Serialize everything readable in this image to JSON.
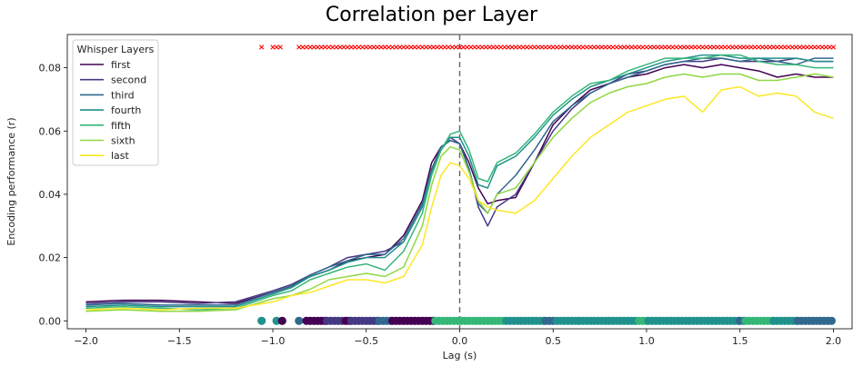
{
  "chart_data": {
    "type": "line",
    "title": "Correlation per Layer",
    "xlabel": "Lag (s)",
    "ylabel": "Encoding performance (r)",
    "xlim": [
      -2.1,
      2.1
    ],
    "ylim": [
      -0.0025,
      0.0905
    ],
    "x_ticks": [
      -2.0,
      -1.5,
      -1.0,
      -0.5,
      0.0,
      0.5,
      1.0,
      1.5,
      2.0
    ],
    "x_tick_labels": [
      "−2.0",
      "−1.5",
      "−1.0",
      "−0.5",
      "0.0",
      "0.5",
      "1.0",
      "1.5",
      "2.0"
    ],
    "y_ticks": [
      0.0,
      0.02,
      0.04,
      0.06,
      0.08
    ],
    "y_tick_labels": [
      "0.00",
      "0.02",
      "0.04",
      "0.06",
      "0.08"
    ],
    "grid": false,
    "vline_x": 0.0,
    "legend": {
      "title": "Whisper Layers",
      "placement": "top-left"
    },
    "series": [
      {
        "name": "first",
        "color": "#440154",
        "x": [
          -2.0,
          -1.8,
          -1.6,
          -1.4,
          -1.2,
          -1.0,
          -0.9,
          -0.8,
          -0.7,
          -0.6,
          -0.5,
          -0.4,
          -0.3,
          -0.2,
          -0.15,
          -0.1,
          -0.05,
          0.0,
          0.05,
          0.1,
          0.15,
          0.2,
          0.3,
          0.4,
          0.5,
          0.6,
          0.7,
          0.8,
          0.9,
          1.0,
          1.1,
          1.2,
          1.3,
          1.4,
          1.5,
          1.6,
          1.7,
          1.8,
          1.9,
          2.0
        ],
        "y": [
          0.006,
          0.0065,
          0.0065,
          0.006,
          0.0055,
          0.009,
          0.011,
          0.014,
          0.016,
          0.019,
          0.02,
          0.021,
          0.027,
          0.038,
          0.05,
          0.055,
          0.057,
          0.056,
          0.05,
          0.042,
          0.037,
          0.038,
          0.039,
          0.05,
          0.062,
          0.068,
          0.073,
          0.075,
          0.077,
          0.078,
          0.08,
          0.081,
          0.08,
          0.081,
          0.08,
          0.079,
          0.077,
          0.078,
          0.077,
          0.077
        ]
      },
      {
        "name": "second",
        "color": "#443983",
        "x": [
          -2.0,
          -1.8,
          -1.6,
          -1.4,
          -1.2,
          -1.0,
          -0.9,
          -0.8,
          -0.7,
          -0.6,
          -0.5,
          -0.4,
          -0.3,
          -0.2,
          -0.15,
          -0.1,
          -0.05,
          0.0,
          0.05,
          0.1,
          0.15,
          0.2,
          0.3,
          0.4,
          0.5,
          0.6,
          0.7,
          0.8,
          0.9,
          1.0,
          1.1,
          1.2,
          1.3,
          1.4,
          1.5,
          1.6,
          1.7,
          1.8,
          1.9,
          2.0
        ],
        "y": [
          0.0055,
          0.006,
          0.006,
          0.0055,
          0.006,
          0.0095,
          0.0115,
          0.0145,
          0.017,
          0.02,
          0.021,
          0.022,
          0.025,
          0.036,
          0.048,
          0.054,
          0.058,
          0.056,
          0.048,
          0.036,
          0.03,
          0.036,
          0.04,
          0.05,
          0.06,
          0.067,
          0.072,
          0.075,
          0.078,
          0.079,
          0.081,
          0.082,
          0.082,
          0.083,
          0.082,
          0.082,
          0.082,
          0.083,
          0.082,
          0.082
        ]
      },
      {
        "name": "third",
        "color": "#31688e",
        "x": [
          -2.0,
          -1.8,
          -1.6,
          -1.4,
          -1.2,
          -1.0,
          -0.9,
          -0.8,
          -0.7,
          -0.6,
          -0.5,
          -0.4,
          -0.3,
          -0.2,
          -0.15,
          -0.1,
          -0.05,
          0.0,
          0.05,
          0.1,
          0.15,
          0.2,
          0.3,
          0.4,
          0.5,
          0.6,
          0.7,
          0.8,
          0.9,
          1.0,
          1.1,
          1.2,
          1.3,
          1.4,
          1.5,
          1.6,
          1.7,
          1.8,
          1.9,
          2.0
        ],
        "y": [
          0.005,
          0.0055,
          0.005,
          0.005,
          0.005,
          0.009,
          0.011,
          0.0145,
          0.017,
          0.019,
          0.021,
          0.021,
          0.026,
          0.037,
          0.048,
          0.055,
          0.057,
          0.056,
          0.048,
          0.037,
          0.034,
          0.04,
          0.046,
          0.054,
          0.063,
          0.068,
          0.072,
          0.075,
          0.077,
          0.079,
          0.081,
          0.082,
          0.083,
          0.083,
          0.082,
          0.083,
          0.082,
          0.081,
          0.083,
          0.083
        ]
      },
      {
        "name": "fourth",
        "color": "#21918c",
        "x": [
          -2.0,
          -1.8,
          -1.6,
          -1.4,
          -1.2,
          -1.0,
          -0.9,
          -0.8,
          -0.7,
          -0.6,
          -0.5,
          -0.4,
          -0.3,
          -0.2,
          -0.15,
          -0.1,
          -0.05,
          0.0,
          0.05,
          0.1,
          0.15,
          0.2,
          0.3,
          0.4,
          0.5,
          0.6,
          0.7,
          0.8,
          0.9,
          1.0,
          1.1,
          1.2,
          1.3,
          1.4,
          1.5,
          1.6,
          1.7,
          1.8,
          1.9,
          2.0
        ],
        "y": [
          0.0045,
          0.005,
          0.0045,
          0.0045,
          0.0045,
          0.0085,
          0.0105,
          0.014,
          0.016,
          0.0185,
          0.02,
          0.02,
          0.025,
          0.036,
          0.047,
          0.054,
          0.058,
          0.058,
          0.052,
          0.043,
          0.042,
          0.049,
          0.052,
          0.058,
          0.065,
          0.07,
          0.074,
          0.076,
          0.078,
          0.08,
          0.082,
          0.083,
          0.084,
          0.084,
          0.083,
          0.083,
          0.083,
          0.083,
          0.082,
          0.082
        ]
      },
      {
        "name": "fifth",
        "color": "#35b779",
        "x": [
          -2.0,
          -1.8,
          -1.6,
          -1.4,
          -1.2,
          -1.0,
          -0.9,
          -0.8,
          -0.7,
          -0.6,
          -0.5,
          -0.4,
          -0.3,
          -0.2,
          -0.15,
          -0.1,
          -0.05,
          0.0,
          0.05,
          0.1,
          0.15,
          0.2,
          0.3,
          0.4,
          0.5,
          0.6,
          0.7,
          0.8,
          0.9,
          1.0,
          1.1,
          1.2,
          1.3,
          1.4,
          1.5,
          1.6,
          1.7,
          1.8,
          1.9,
          2.0
        ],
        "y": [
          0.004,
          0.0045,
          0.004,
          0.0035,
          0.004,
          0.008,
          0.0095,
          0.013,
          0.015,
          0.017,
          0.018,
          0.016,
          0.022,
          0.034,
          0.046,
          0.054,
          0.059,
          0.06,
          0.054,
          0.045,
          0.044,
          0.05,
          0.053,
          0.059,
          0.066,
          0.071,
          0.075,
          0.076,
          0.079,
          0.081,
          0.083,
          0.083,
          0.083,
          0.084,
          0.084,
          0.082,
          0.081,
          0.081,
          0.08,
          0.08
        ]
      },
      {
        "name": "sixth",
        "color": "#8fd744",
        "x": [
          -2.0,
          -1.8,
          -1.6,
          -1.4,
          -1.2,
          -1.0,
          -0.9,
          -0.8,
          -0.7,
          -0.6,
          -0.5,
          -0.4,
          -0.3,
          -0.2,
          -0.15,
          -0.1,
          -0.05,
          0.0,
          0.05,
          0.1,
          0.15,
          0.2,
          0.3,
          0.4,
          0.5,
          0.6,
          0.7,
          0.8,
          0.9,
          1.0,
          1.1,
          1.2,
          1.3,
          1.4,
          1.5,
          1.6,
          1.7,
          1.8,
          1.9,
          2.0
        ],
        "y": [
          0.003,
          0.0035,
          0.003,
          0.003,
          0.0035,
          0.007,
          0.008,
          0.01,
          0.013,
          0.014,
          0.015,
          0.014,
          0.017,
          0.03,
          0.043,
          0.052,
          0.055,
          0.054,
          0.047,
          0.038,
          0.034,
          0.04,
          0.042,
          0.05,
          0.058,
          0.064,
          0.069,
          0.072,
          0.074,
          0.075,
          0.077,
          0.078,
          0.077,
          0.078,
          0.078,
          0.076,
          0.076,
          0.077,
          0.078,
          0.077
        ]
      },
      {
        "name": "last",
        "color": "#fde725",
        "x": [
          -2.0,
          -1.8,
          -1.6,
          -1.4,
          -1.2,
          -1.0,
          -0.9,
          -0.8,
          -0.7,
          -0.6,
          -0.5,
          -0.4,
          -0.3,
          -0.2,
          -0.15,
          -0.1,
          -0.05,
          0.0,
          0.05,
          0.1,
          0.15,
          0.2,
          0.3,
          0.4,
          0.5,
          0.6,
          0.7,
          0.8,
          0.9,
          1.0,
          1.1,
          1.2,
          1.3,
          1.4,
          1.5,
          1.6,
          1.7,
          1.8,
          1.9,
          2.0
        ],
        "y": [
          0.0035,
          0.004,
          0.0035,
          0.004,
          0.004,
          0.006,
          0.008,
          0.009,
          0.011,
          0.013,
          0.013,
          0.012,
          0.014,
          0.024,
          0.036,
          0.046,
          0.05,
          0.049,
          0.045,
          0.038,
          0.036,
          0.035,
          0.034,
          0.038,
          0.045,
          0.052,
          0.058,
          0.062,
          0.066,
          0.068,
          0.07,
          0.071,
          0.066,
          0.073,
          0.074,
          0.071,
          0.072,
          0.071,
          0.066,
          0.064
        ]
      }
    ],
    "markers_x_row": {
      "y": 0.0865,
      "color": "#ff0000",
      "segments": [
        [
          -1.06,
          -1.06
        ],
        [
          -1.0,
          -0.96
        ],
        [
          -0.86,
          2.0
        ]
      ]
    },
    "markers_dot_row": {
      "y": 0.0,
      "segments": [
        {
          "from": -1.06,
          "to": -1.06,
          "layer": "fourth"
        },
        {
          "from": -0.98,
          "to": -0.98,
          "layer": "fourth"
        },
        {
          "from": -0.95,
          "to": -0.95,
          "layer": "first"
        },
        {
          "from": -0.86,
          "to": -0.86,
          "layer": "third"
        },
        {
          "from": -0.82,
          "to": -0.72,
          "layer": "first"
        },
        {
          "from": -0.71,
          "to": -0.62,
          "layer": "second"
        },
        {
          "from": -0.61,
          "to": -0.59,
          "layer": "first"
        },
        {
          "from": -0.58,
          "to": -0.44,
          "layer": "second"
        },
        {
          "from": -0.43,
          "to": -0.37,
          "layer": "third"
        },
        {
          "from": -0.36,
          "to": -0.14,
          "layer": "first"
        },
        {
          "from": -0.13,
          "to": 0.24,
          "layer": "fifth"
        },
        {
          "from": 0.25,
          "to": 0.45,
          "layer": "fourth"
        },
        {
          "from": 0.46,
          "to": 0.51,
          "layer": "third"
        },
        {
          "from": 0.52,
          "to": 0.95,
          "layer": "fourth"
        },
        {
          "from": 0.96,
          "to": 1.0,
          "layer": "fifth"
        },
        {
          "from": 1.01,
          "to": 1.49,
          "layer": "fourth"
        },
        {
          "from": 1.5,
          "to": 1.52,
          "layer": "third"
        },
        {
          "from": 1.53,
          "to": 1.67,
          "layer": "fifth"
        },
        {
          "from": 1.68,
          "to": 1.8,
          "layer": "fourth"
        },
        {
          "from": 1.81,
          "to": 2.0,
          "layer": "third"
        }
      ]
    }
  }
}
